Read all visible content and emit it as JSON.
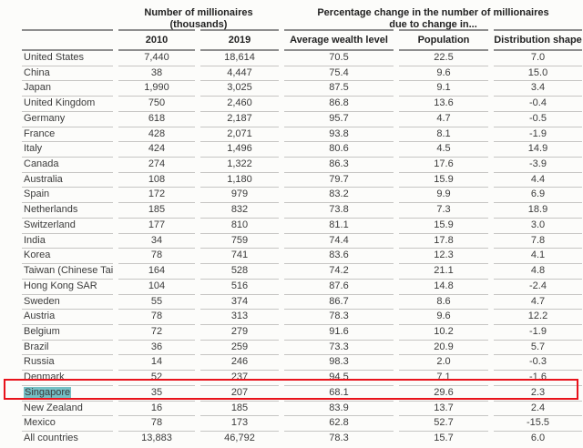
{
  "table": {
    "group_headers": [
      {
        "line1": "Number of  millionaires",
        "line2": "(thousands)"
      },
      {
        "line1": "Percentage change in the number of millionaires",
        "line2": "due to change in..."
      }
    ],
    "column_headers": [
      "2010",
      "2019",
      "Average wealth level",
      "Population",
      "Distribution shape"
    ],
    "rows": [
      {
        "country": "United States",
        "y2010": "7,440",
        "y2019": "18,614",
        "avg_wealth": "70.5",
        "population": "22.5",
        "distribution": "7.0"
      },
      {
        "country": "China",
        "y2010": "38",
        "y2019": "4,447",
        "avg_wealth": "75.4",
        "population": "9.6",
        "distribution": "15.0"
      },
      {
        "country": "Japan",
        "y2010": "1,990",
        "y2019": "3,025",
        "avg_wealth": "87.5",
        "population": "9.1",
        "distribution": "3.4"
      },
      {
        "country": "United Kingdom",
        "y2010": "750",
        "y2019": "2,460",
        "avg_wealth": "86.8",
        "population": "13.6",
        "distribution": "-0.4"
      },
      {
        "country": "Germany",
        "y2010": "618",
        "y2019": "2,187",
        "avg_wealth": "95.7",
        "population": "4.7",
        "distribution": "-0.5"
      },
      {
        "country": "France",
        "y2010": "428",
        "y2019": "2,071",
        "avg_wealth": "93.8",
        "population": "8.1",
        "distribution": "-1.9"
      },
      {
        "country": "Italy",
        "y2010": "424",
        "y2019": "1,496",
        "avg_wealth": "80.6",
        "population": "4.5",
        "distribution": "14.9"
      },
      {
        "country": "Canada",
        "y2010": "274",
        "y2019": "1,322",
        "avg_wealth": "86.3",
        "population": "17.6",
        "distribution": "-3.9"
      },
      {
        "country": "Australia",
        "y2010": "108",
        "y2019": "1,180",
        "avg_wealth": "79.7",
        "population": "15.9",
        "distribution": "4.4"
      },
      {
        "country": "Spain",
        "y2010": "172",
        "y2019": "979",
        "avg_wealth": "83.2",
        "population": "9.9",
        "distribution": "6.9"
      },
      {
        "country": "Netherlands",
        "y2010": "185",
        "y2019": "832",
        "avg_wealth": "73.8",
        "population": "7.3",
        "distribution": "18.9"
      },
      {
        "country": "Switzerland",
        "y2010": "177",
        "y2019": "810",
        "avg_wealth": "81.1",
        "population": "15.9",
        "distribution": "3.0"
      },
      {
        "country": "India",
        "y2010": "34",
        "y2019": "759",
        "avg_wealth": "74.4",
        "population": "17.8",
        "distribution": "7.8"
      },
      {
        "country": "Korea",
        "y2010": "78",
        "y2019": "741",
        "avg_wealth": "83.6",
        "population": "12.3",
        "distribution": "4.1"
      },
      {
        "country": "Taiwan (Chinese Taipei)",
        "y2010": "164",
        "y2019": "528",
        "avg_wealth": "74.2",
        "population": "21.1",
        "distribution": "4.8"
      },
      {
        "country": "Hong Kong SAR",
        "y2010": "104",
        "y2019": "516",
        "avg_wealth": "87.6",
        "population": "14.8",
        "distribution": "-2.4"
      },
      {
        "country": "Sweden",
        "y2010": "55",
        "y2019": "374",
        "avg_wealth": "86.7",
        "population": "8.6",
        "distribution": "4.7"
      },
      {
        "country": "Austria",
        "y2010": "78",
        "y2019": "313",
        "avg_wealth": "78.3",
        "population": "9.6",
        "distribution": "12.2"
      },
      {
        "country": "Belgium",
        "y2010": "72",
        "y2019": "279",
        "avg_wealth": "91.6",
        "population": "10.2",
        "distribution": "-1.9"
      },
      {
        "country": "Brazil",
        "y2010": "36",
        "y2019": "259",
        "avg_wealth": "73.3",
        "population": "20.9",
        "distribution": "5.7"
      },
      {
        "country": "Russia",
        "y2010": "14",
        "y2019": "246",
        "avg_wealth": "98.3",
        "population": "2.0",
        "distribution": "-0.3"
      },
      {
        "country": "Denmark",
        "y2010": "52",
        "y2019": "237",
        "avg_wealth": "94.5",
        "population": "7.1",
        "distribution": "-1.6"
      },
      {
        "country": "Singapore",
        "y2010": "35",
        "y2019": "207",
        "avg_wealth": "68.1",
        "population": "29.6",
        "distribution": "2.3",
        "highlighted": true
      },
      {
        "country": "New Zealand",
        "y2010": "16",
        "y2019": "185",
        "avg_wealth": "83.9",
        "population": "13.7",
        "distribution": "2.4"
      },
      {
        "country": "Mexico",
        "y2010": "78",
        "y2019": "173",
        "avg_wealth": "62.8",
        "population": "52.7",
        "distribution": "-15.5"
      },
      {
        "country": "All countries",
        "y2010": "13,883",
        "y2019": "46,792",
        "avg_wealth": "78.3",
        "population": "15.7",
        "distribution": "6.0"
      }
    ]
  },
  "annotations": {
    "highlighted_row": "Singapore",
    "selection_color": "#74bfc4",
    "box_color": "#e8131b"
  }
}
